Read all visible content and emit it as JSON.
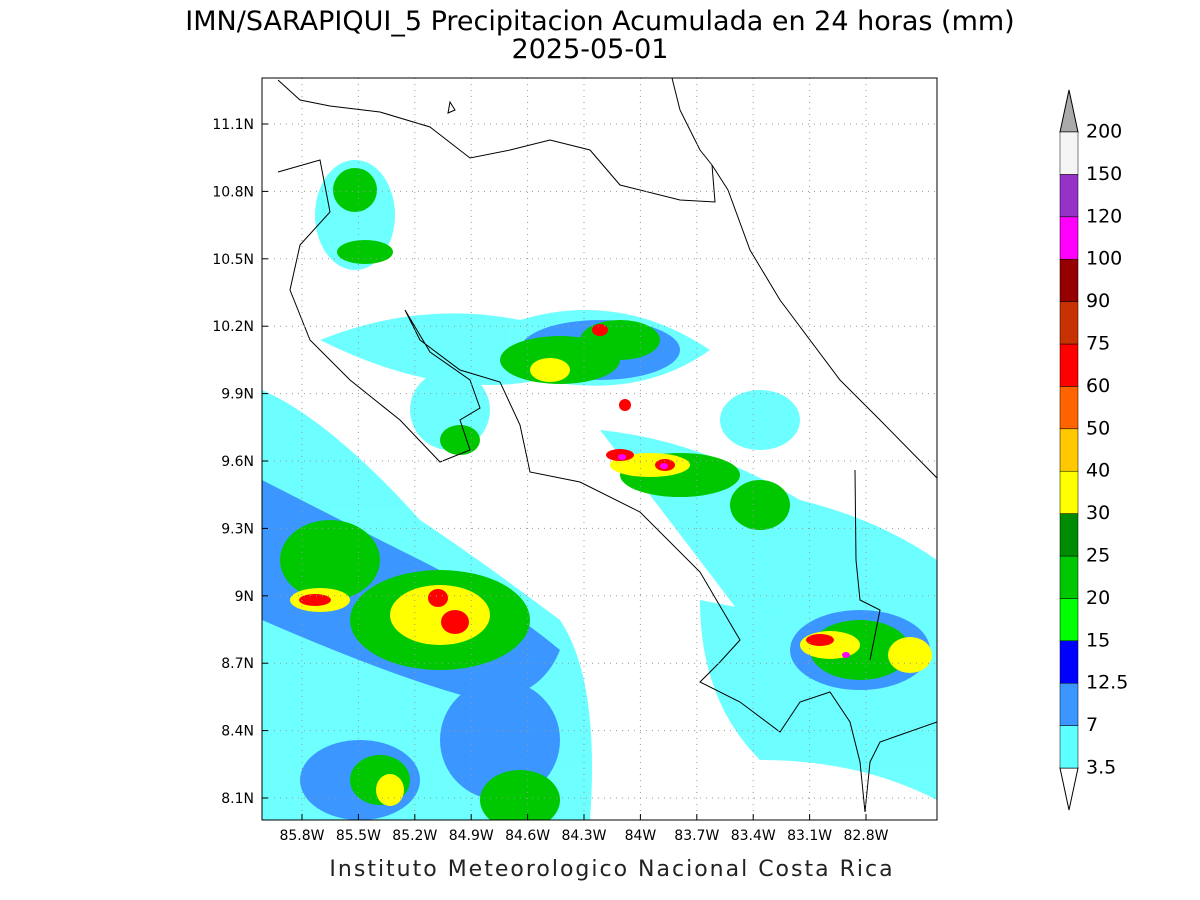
{
  "map": {
    "title": "IMN/SARAPIQUI_5 Precipitacion Acumulada en 24 horas (mm)",
    "subtitle": "2025-05-01",
    "footer": "Instituto Meteorologico Nacional Costa Rica",
    "lat_ticks": [
      "11.1N",
      "10.8N",
      "10.5N",
      "10.2N",
      "9.9N",
      "9.6N",
      "9.3N",
      "9N",
      "8.7N",
      "8.4N",
      "8.1N"
    ],
    "lon_ticks": [
      "85.8W",
      "85.5W",
      "85.2W",
      "84.9W",
      "84.6W",
      "84.3W",
      "84W",
      "83.7W",
      "83.4W",
      "83.1W",
      "82.8W"
    ],
    "legend": {
      "levels": [
        3.5,
        7,
        12.5,
        15,
        20,
        25,
        30,
        40,
        50,
        60,
        75,
        90,
        100,
        120,
        150,
        200
      ],
      "colors": [
        "#5effff",
        "#3c96ff",
        "#0000ff",
        "#00ff00",
        "#00c800",
        "#008c00",
        "#ffff00",
        "#ffc800",
        "#ff6400",
        "#ff0000",
        "#c83200",
        "#960000",
        "#ff00ff",
        "#9632c8",
        "#f5f5f5"
      ]
    }
  }
}
